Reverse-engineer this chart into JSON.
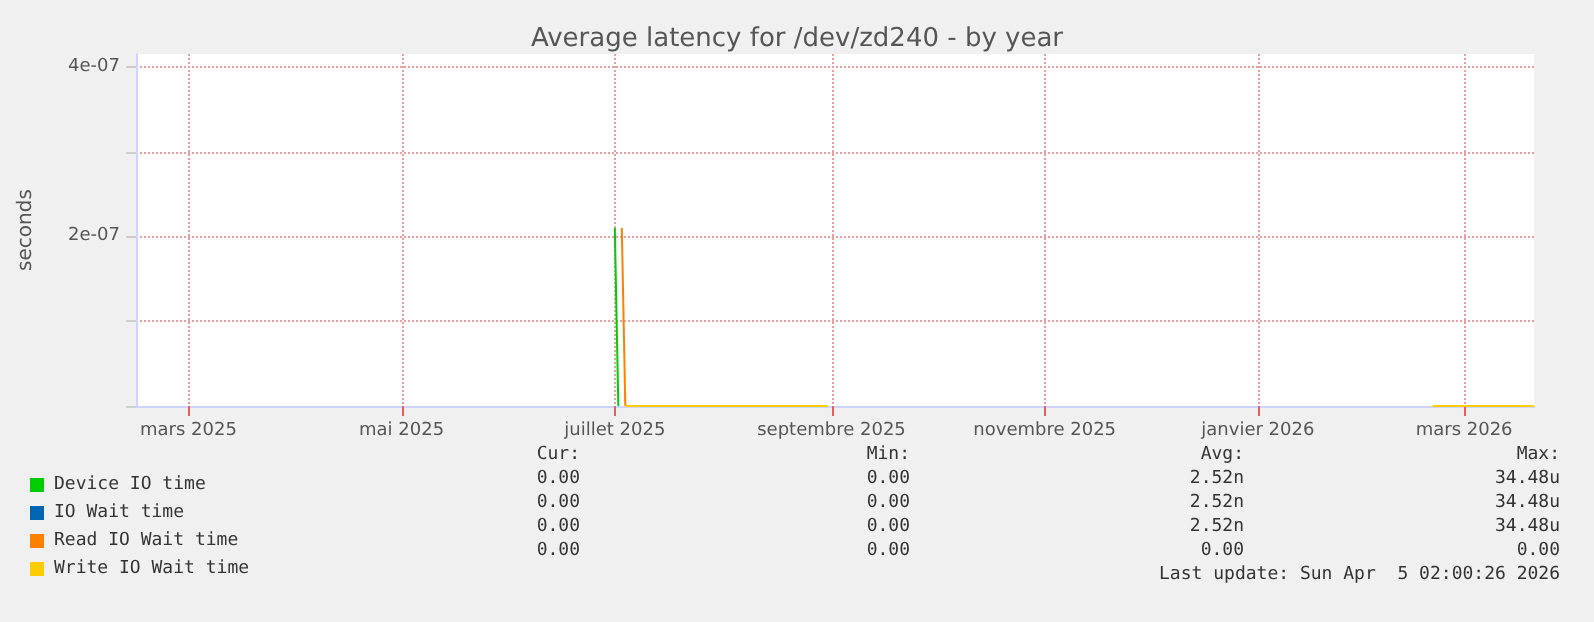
{
  "chart_data": {
    "type": "line",
    "title": "Average latency for /dev/zd240 - by year",
    "ylabel": "seconds",
    "xlim": [
      "2025-02-14",
      "2026-03-21"
    ],
    "xticks": [
      {
        "value": "2025-03-01",
        "label": "mars 2025"
      },
      {
        "value": "2025-05-01",
        "label": "mai 2025"
      },
      {
        "value": "2025-07-01",
        "label": "juillet 2025"
      },
      {
        "value": "2025-09-01",
        "label": "septembre 2025"
      },
      {
        "value": "2025-11-01",
        "label": "novembre 2025"
      },
      {
        "value": "2026-01-01",
        "label": "janvier 2026"
      },
      {
        "value": "2026-03-01",
        "label": "mars 2026"
      }
    ],
    "ylim": [
      0,
      4.15e-07
    ],
    "yticks": [
      {
        "value": 0,
        "label": null
      },
      {
        "value": 1e-07,
        "label": null
      },
      {
        "value": 2e-07,
        "label": "2e-07"
      },
      {
        "value": 3e-07,
        "label": null
      },
      {
        "value": 4e-07,
        "label": "4e-07"
      }
    ],
    "grid": true,
    "legend": "bottom left",
    "line_style": "solid",
    "series": [
      {
        "name": "Device IO time",
        "color": "#00cc00",
        "x": [
          "2025-07-01",
          "2025-07-02"
        ],
        "values": [
          2.1e-07,
          0
        ]
      },
      {
        "name": "IO Wait time",
        "color": "#0066b3"
      },
      {
        "name": "Read IO Wait time",
        "color": "#ff8000",
        "x": [
          "2025-07-03",
          "2025-07-04"
        ],
        "values": [
          2.1e-07,
          0
        ]
      },
      {
        "name": "Write IO Wait time",
        "color": "#ffcc00",
        "x": [
          "2025-07-04",
          "2025-08-31",
          "2025-09-01",
          "2026-02-20",
          "2026-03-21"
        ],
        "values": [
          0,
          0,
          null,
          0,
          0
        ]
      }
    ],
    "annotations": [
      "Cur:",
      "Min:",
      "Avg:",
      "Max:",
      "0.00",
      "0.00",
      "2.52n",
      "34.48u",
      "0.00",
      "0.00",
      "2.52n",
      "34.48u",
      "0.00",
      "0.00",
      "2.52n",
      "34.48u",
      "0.00",
      "0.00",
      "0.00",
      "0.00",
      "Last update: Sun Apr  5 02:00:26 2026"
    ]
  }
}
